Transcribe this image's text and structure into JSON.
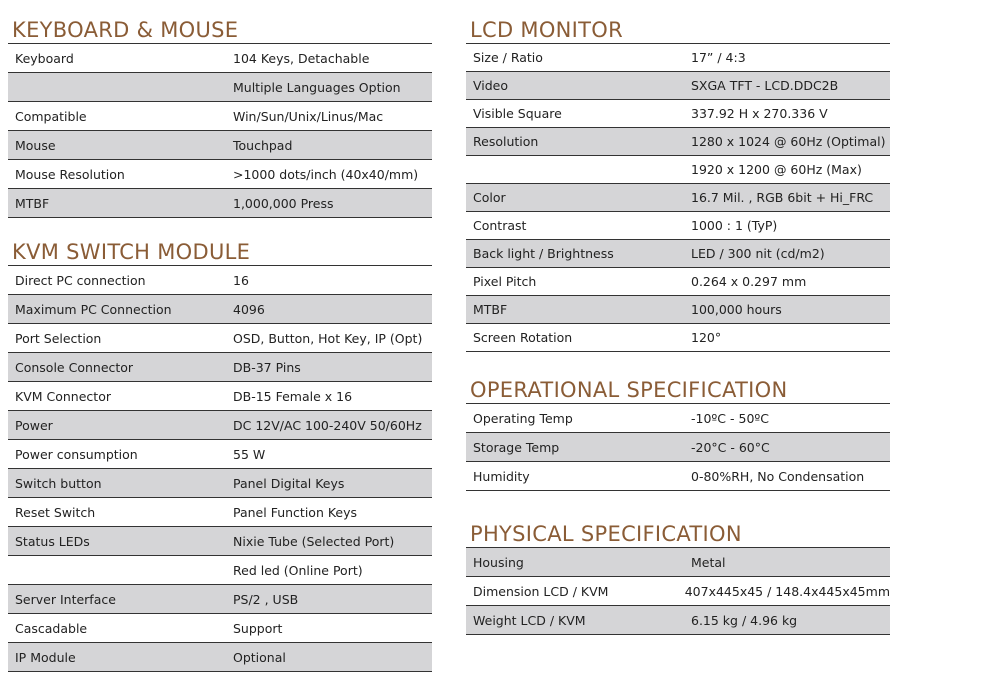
{
  "colors": {
    "heading": "#8a5c36",
    "shaded_row": "#d5d5d7",
    "rule": "#333333"
  },
  "sections": [
    {
      "id": "kbd",
      "title": "KEYBOARD & MOUSE",
      "rows": [
        {
          "k": "Keyboard",
          "v": "104 Keys, Detachable"
        },
        {
          "k": "",
          "v": "Multiple Languages Option"
        },
        {
          "k": "Compatible",
          "v": "Win/Sun/Unix/Linus/Mac"
        },
        {
          "k": "Mouse",
          "v": "Touchpad"
        },
        {
          "k": "Mouse Resolution",
          "v": ">1000 dots/inch (40x40/mm)"
        },
        {
          "k": "MTBF",
          "v": "1,000,000 Press"
        }
      ]
    },
    {
      "id": "kvm",
      "title": "KVM SWITCH MODULE",
      "rows": [
        {
          "k": "Direct PC connection",
          "v": "16"
        },
        {
          "k": "Maximum PC Connection",
          "v": "4096"
        },
        {
          "k": "Port Selection",
          "v": "OSD, Button, Hot Key, IP (Opt)"
        },
        {
          "k": "Console Connector",
          "v": "DB-37 Pins"
        },
        {
          "k": "KVM Connector",
          "v": "DB-15 Female x 16"
        },
        {
          "k": "Power",
          "v": "DC 12V/AC 100-240V 50/60Hz"
        },
        {
          "k": "Power consumption",
          "v": "55 W"
        },
        {
          "k": "Switch button",
          "v": "Panel Digital Keys"
        },
        {
          "k": "Reset Switch",
          "v": "Panel Function Keys"
        },
        {
          "k": "Status LEDs",
          "v": "Nixie Tube (Selected Port)"
        },
        {
          "k": "",
          "v": "Red led (Online Port)"
        },
        {
          "k": "Server Interface",
          "v": "PS/2 , USB"
        },
        {
          "k": "Cascadable",
          "v": "Support"
        },
        {
          "k": "IP Module",
          "v": "Optional"
        }
      ]
    },
    {
      "id": "lcd",
      "title": "LCD MONITOR",
      "rows": [
        {
          "k": "Size / Ratio",
          "v": "17” / 4:3"
        },
        {
          "k": "Video",
          "v": "SXGA TFT - LCD.DDC2B"
        },
        {
          "k": "Visible Square",
          "v": "337.92 H x 270.336 V"
        },
        {
          "k": "Resolution",
          "v": "1280 x 1024 @ 60Hz (Optimal)"
        },
        {
          "k": "",
          "v": "1920 x 1200 @ 60Hz (Max)"
        },
        {
          "k": "Color",
          "v": "16.7 Mil. , RGB 6bit + Hi_FRC"
        },
        {
          "k": "Contrast",
          "v": "1000 : 1 (TyP)"
        },
        {
          "k": "Back light / Brightness",
          "v": "LED / 300 nit (cd/m2)"
        },
        {
          "k": "Pixel Pitch",
          "v": "0.264 x 0.297 mm"
        },
        {
          "k": "MTBF",
          "v": "100,000 hours"
        },
        {
          "k": "Screen Rotation",
          "v": "120°"
        }
      ]
    },
    {
      "id": "ops",
      "title": "OPERATIONAL SPECIFICATION",
      "rows": [
        {
          "k": "Operating Temp",
          "v": "-10ºC - 50ºC"
        },
        {
          "k": "Storage Temp",
          "v": "-20°C - 60°C"
        },
        {
          "k": "Humidity",
          "v": "0-80%RH, No Condensation"
        }
      ]
    },
    {
      "id": "phy",
      "title": "PHYSICAL SPECIFICATION",
      "rows": [
        {
          "k": "Housing",
          "v": "Metal"
        },
        {
          "k": "Dimension LCD / KVM",
          "v": "407x445x45 / 148.4x445x45mm"
        },
        {
          "k": "Weight LCD / KVM",
          "v": "6.15 kg / 4.96 kg"
        }
      ]
    }
  ]
}
